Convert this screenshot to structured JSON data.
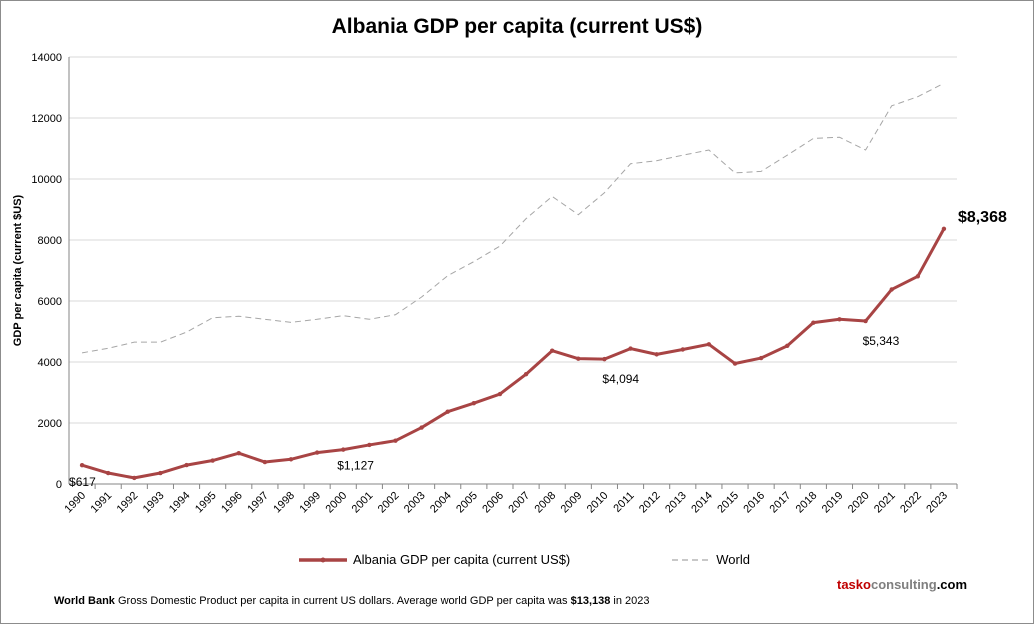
{
  "chart_data": {
    "type": "line",
    "title": "Albania GDP per capita (current US$)",
    "xlabel": "",
    "ylabel": "GDP per capita (current $US)",
    "ylim": [
      0,
      14000
    ],
    "yticks": [
      0,
      2000,
      4000,
      6000,
      8000,
      10000,
      12000,
      14000
    ],
    "grid": true,
    "legend_position": "bottom",
    "categories": [
      "1990",
      "1991",
      "1992",
      "1993",
      "1994",
      "1995",
      "1996",
      "1997",
      "1998",
      "1999",
      "2000",
      "2001",
      "2002",
      "2003",
      "2004",
      "2005",
      "2006",
      "2007",
      "2008",
      "2009",
      "2010",
      "2011",
      "2012",
      "2013",
      "2014",
      "2015",
      "2016",
      "2017",
      "2018",
      "2019",
      "2020",
      "2021",
      "2022",
      "2023"
    ],
    "series": [
      {
        "name": "Albania GDP per capita (current US$)",
        "color": "#a84444",
        "values": [
          617,
          360,
          200,
          360,
          620,
          770,
          1010,
          720,
          810,
          1030,
          1127,
          1280,
          1420,
          1850,
          2370,
          2650,
          2950,
          3600,
          4370,
          4110,
          4094,
          4440,
          4250,
          4410,
          4580,
          3950,
          4130,
          4530,
          5290,
          5400,
          5343,
          6380,
          6810,
          8368
        ]
      },
      {
        "name": "World",
        "color": "#a6a6a6",
        "values": [
          4300,
          4450,
          4650,
          4650,
          4980,
          5450,
          5500,
          5400,
          5300,
          5400,
          5520,
          5400,
          5550,
          6130,
          6830,
          7290,
          7800,
          8700,
          9430,
          8830,
          9550,
          10500,
          10600,
          10780,
          10950,
          10200,
          10250,
          10780,
          11330,
          11370,
          10950,
          12400,
          12700,
          13138
        ]
      }
    ],
    "annotations": [
      {
        "category": "1990",
        "text": "$617"
      },
      {
        "category": "2000",
        "text": "$1,127"
      },
      {
        "category": "2010",
        "text": "$4,094"
      },
      {
        "category": "2020",
        "text": "$5,343"
      },
      {
        "category": "2023",
        "text": "$8,368"
      }
    ]
  },
  "footer": {
    "source": "World Bank",
    "text": " Gross Domestic Product per capita in current US dollars.  Average world GDP per capita was ",
    "value": "$13,138",
    "tail": " in 2023"
  },
  "brand": {
    "part1": "tasko",
    "part2": "consulting",
    "part3": ".com"
  }
}
